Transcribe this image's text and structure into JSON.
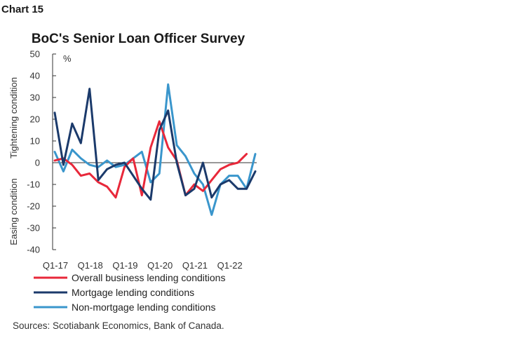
{
  "label": "Chart 15",
  "chart_data": {
    "type": "line",
    "title": "BoC's Senior Loan Officer Survey",
    "unit": "%",
    "ylabel_top": "Tightening condition",
    "ylabel_bottom": "Easing condition",
    "ylim": [
      -40,
      50
    ],
    "yticks": [
      -40,
      -30,
      -20,
      -10,
      0,
      10,
      20,
      30,
      40,
      50
    ],
    "x": [
      "Q1-17",
      "Q2-17",
      "Q3-17",
      "Q4-17",
      "Q1-18",
      "Q2-18",
      "Q3-18",
      "Q4-18",
      "Q1-19",
      "Q2-19",
      "Q3-19",
      "Q4-19",
      "Q1-20",
      "Q2-20",
      "Q3-20",
      "Q4-20",
      "Q1-21",
      "Q2-21",
      "Q3-21",
      "Q4-21",
      "Q1-22",
      "Q2-22",
      "Q3-22",
      "Q4-22"
    ],
    "xtick_labels": [
      "Q1-17",
      "Q1-18",
      "Q1-19",
      "Q1-20",
      "Q1-21",
      "Q1-22"
    ],
    "series": [
      {
        "name": "Overall business lending conditions",
        "color": "#e8283a",
        "values": [
          1,
          2,
          -1,
          -6,
          -5,
          -9,
          -11,
          -16,
          -2,
          2,
          -15,
          7,
          19,
          7,
          1,
          -15,
          -10,
          -13,
          -8,
          -3,
          -1,
          0,
          4,
          null
        ]
      },
      {
        "name": "Mortgage lending conditions",
        "color": "#1b3a6b",
        "values": [
          23,
          -1,
          18,
          9,
          34,
          -8,
          -3,
          -1,
          0,
          -6,
          -12,
          -17,
          15,
          24,
          0,
          -15,
          -12,
          0,
          -16,
          -10,
          -8,
          -12,
          -12,
          -4
        ]
      },
      {
        "name": "Non-mortgage lending conditions",
        "color": "#3a96cc",
        "values": [
          5,
          -4,
          6,
          2,
          -1,
          -2,
          1,
          -2,
          -1,
          2,
          5,
          -9,
          -5,
          36,
          8,
          3,
          -5,
          -10,
          -24,
          -10,
          -6,
          -6,
          -12,
          4
        ]
      }
    ],
    "legend_position": "bottom"
  },
  "source": "Sources: Scotiabank Economics, Bank of Canada."
}
